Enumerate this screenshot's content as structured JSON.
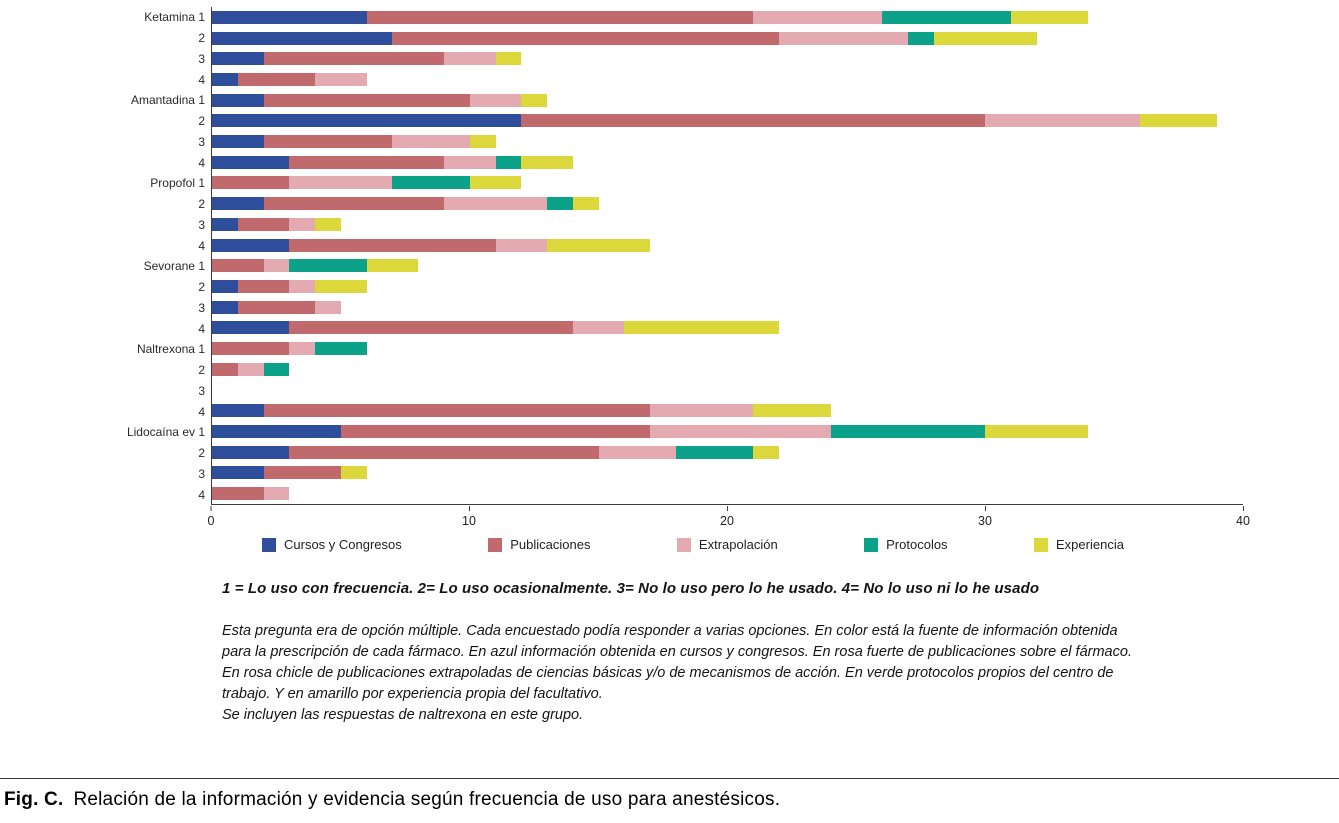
{
  "chart_data": {
    "type": "bar",
    "orientation": "horizontal",
    "title": "",
    "xlabel": "",
    "ylabel": "",
    "xlim": [
      0,
      40
    ],
    "xticks": [
      "0",
      "10",
      "20",
      "30",
      "40"
    ],
    "grid": false,
    "legend_position": "bottom",
    "series": [
      {
        "name": "Cursos y Congresos",
        "color": "#2e4d9b"
      },
      {
        "name": "Publicaciones",
        "color": "#c16a6e"
      },
      {
        "name": "Extrapolación",
        "color": "#e3aab1"
      },
      {
        "name": "Protocolos",
        "color": "#0ca189"
      },
      {
        "name": "Experiencia",
        "color": "#dcd83c"
      }
    ],
    "rows": [
      {
        "label": "Ketamina 1",
        "values": [
          6,
          15,
          5,
          5,
          3
        ]
      },
      {
        "label": "2",
        "values": [
          7,
          15,
          5,
          1,
          4
        ]
      },
      {
        "label": "3",
        "values": [
          2,
          7,
          2,
          0,
          1
        ]
      },
      {
        "label": "4",
        "values": [
          1,
          3,
          2,
          0,
          0
        ]
      },
      {
        "label": "Amantadina 1",
        "values": [
          2,
          8,
          2,
          0,
          1
        ]
      },
      {
        "label": "2",
        "values": [
          12,
          18,
          6,
          0,
          3
        ]
      },
      {
        "label": "3",
        "values": [
          2,
          5,
          3,
          0,
          1
        ]
      },
      {
        "label": "4",
        "values": [
          3,
          6,
          2,
          1,
          2
        ]
      },
      {
        "label": "Propofol 1",
        "values": [
          0,
          3,
          4,
          3,
          2
        ]
      },
      {
        "label": "2",
        "values": [
          2,
          7,
          4,
          1,
          1
        ]
      },
      {
        "label": "3",
        "values": [
          1,
          2,
          1,
          0,
          1
        ]
      },
      {
        "label": "4",
        "values": [
          3,
          8,
          2,
          0,
          4
        ]
      },
      {
        "label": "Sevorane 1",
        "values": [
          0,
          2,
          1,
          3,
          2
        ]
      },
      {
        "label": "2",
        "values": [
          1,
          2,
          1,
          0,
          2
        ]
      },
      {
        "label": "3",
        "values": [
          1,
          3,
          1,
          0,
          0
        ]
      },
      {
        "label": "4",
        "values": [
          3,
          11,
          2,
          0,
          6
        ]
      },
      {
        "label": "Naltrexona 1",
        "values": [
          0,
          3,
          1,
          2,
          0
        ]
      },
      {
        "label": "2",
        "values": [
          0,
          1,
          1,
          1,
          0
        ]
      },
      {
        "label": "3",
        "values": [
          0,
          0,
          0,
          0,
          0
        ]
      },
      {
        "label": "4",
        "values": [
          2,
          15,
          4,
          0,
          3
        ]
      },
      {
        "label": "Lidocaína ev 1",
        "values": [
          5,
          12,
          7,
          6,
          4
        ]
      },
      {
        "label": "2",
        "values": [
          3,
          12,
          3,
          3,
          1
        ]
      },
      {
        "label": "3",
        "values": [
          2,
          3,
          0,
          0,
          1
        ]
      },
      {
        "label": "4",
        "values": [
          0,
          2,
          1,
          0,
          0
        ]
      }
    ]
  },
  "notes": {
    "scale": "1 = Lo uso con frecuencia. 2= Lo uso ocasionalmente. 3= No lo uso pero lo he usado. 4= No lo uso ni lo he usado",
    "paragraph": "Esta pregunta era de opción múltiple. Cada encuestado podía responder a varias opciones. En color está la fuente de información obtenida para la prescripción de cada fármaco. En azul información obtenida en cursos y congresos. En rosa fuerte de publicaciones sobre el fármaco. En rosa chicle de publicaciones extrapoladas de ciencias básicas y/o de mecanismos de acción. En verde protocolos propios del centro de trabajo. Y en amarillo por experiencia propia del facultativo.",
    "inclusion": "Se incluyen las respuestas de naltrexona en este grupo."
  },
  "caption": {
    "label": "Fig. C.",
    "text": "Relación de la información y evidencia según frecuencia de uso para anestésicos."
  }
}
